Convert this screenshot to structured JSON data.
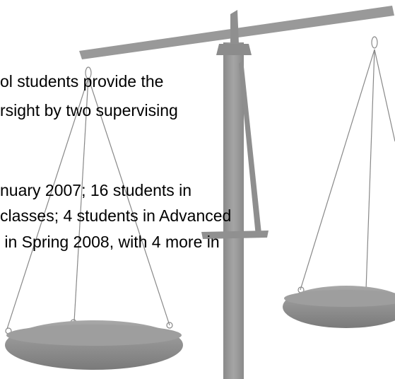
{
  "text_lines": [
    "ol students provide the",
    "rsight by two supervising",
    "nuary 2007; 16 students in",
    "classes; 4 students in Advanced",
    " in Spring 2008, with 4 more in"
  ]
}
